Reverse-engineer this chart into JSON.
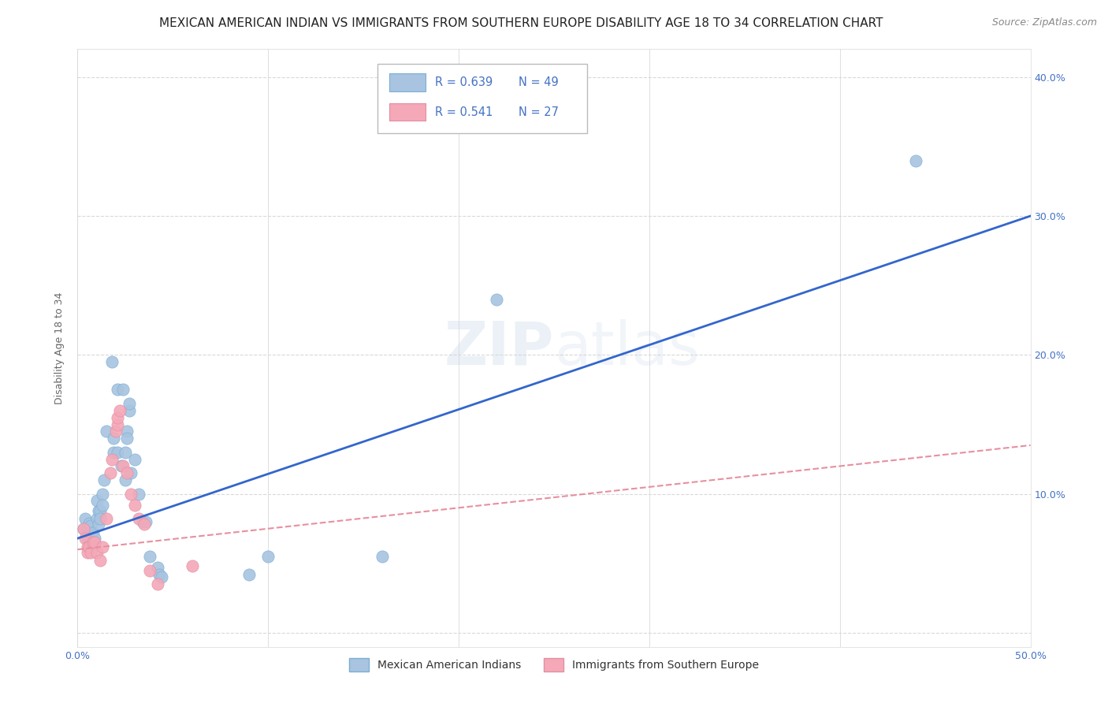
{
  "title": "MEXICAN AMERICAN INDIAN VS IMMIGRANTS FROM SOUTHERN EUROPE DISABILITY AGE 18 TO 34 CORRELATION CHART",
  "source": "Source: ZipAtlas.com",
  "ylabel": "Disability Age 18 to 34",
  "xlim": [
    0.0,
    0.5
  ],
  "ylim": [
    -0.01,
    0.42
  ],
  "xticks": [
    0.0,
    0.1,
    0.2,
    0.3,
    0.4,
    0.5
  ],
  "yticks": [
    0.0,
    0.1,
    0.2,
    0.3,
    0.4
  ],
  "xticklabels": [
    "0.0%",
    "",
    "",
    "",
    "",
    "50.0%"
  ],
  "yticklabels_right": [
    "",
    "10.0%",
    "20.0%",
    "30.0%",
    "40.0%"
  ],
  "background_color": "#ffffff",
  "blue_R": 0.639,
  "blue_N": 49,
  "pink_R": 0.541,
  "pink_N": 27,
  "blue_color": "#a8c4e0",
  "pink_color": "#f4a8b8",
  "blue_line_color": "#3366cc",
  "pink_line_color": "#e88fa0",
  "blue_scatter": [
    [
      0.003,
      0.075
    ],
    [
      0.004,
      0.082
    ],
    [
      0.005,
      0.076
    ],
    [
      0.005,
      0.068
    ],
    [
      0.006,
      0.079
    ],
    [
      0.006,
      0.065
    ],
    [
      0.007,
      0.072
    ],
    [
      0.007,
      0.077
    ],
    [
      0.008,
      0.072
    ],
    [
      0.008,
      0.065
    ],
    [
      0.009,
      0.065
    ],
    [
      0.009,
      0.068
    ],
    [
      0.01,
      0.095
    ],
    [
      0.01,
      0.082
    ],
    [
      0.011,
      0.088
    ],
    [
      0.011,
      0.078
    ],
    [
      0.012,
      0.088
    ],
    [
      0.012,
      0.082
    ],
    [
      0.013,
      0.1
    ],
    [
      0.013,
      0.092
    ],
    [
      0.014,
      0.11
    ],
    [
      0.015,
      0.145
    ],
    [
      0.018,
      0.195
    ],
    [
      0.019,
      0.14
    ],
    [
      0.019,
      0.13
    ],
    [
      0.021,
      0.175
    ],
    [
      0.021,
      0.13
    ],
    [
      0.023,
      0.12
    ],
    [
      0.024,
      0.175
    ],
    [
      0.025,
      0.13
    ],
    [
      0.025,
      0.11
    ],
    [
      0.026,
      0.145
    ],
    [
      0.026,
      0.14
    ],
    [
      0.027,
      0.16
    ],
    [
      0.027,
      0.165
    ],
    [
      0.028,
      0.115
    ],
    [
      0.03,
      0.125
    ],
    [
      0.032,
      0.1
    ],
    [
      0.034,
      0.08
    ],
    [
      0.036,
      0.08
    ],
    [
      0.038,
      0.055
    ],
    [
      0.042,
      0.047
    ],
    [
      0.043,
      0.042
    ],
    [
      0.044,
      0.04
    ],
    [
      0.09,
      0.042
    ],
    [
      0.1,
      0.055
    ],
    [
      0.16,
      0.055
    ],
    [
      0.22,
      0.24
    ],
    [
      0.44,
      0.34
    ]
  ],
  "pink_scatter": [
    [
      0.003,
      0.075
    ],
    [
      0.004,
      0.068
    ],
    [
      0.005,
      0.062
    ],
    [
      0.005,
      0.058
    ],
    [
      0.006,
      0.062
    ],
    [
      0.007,
      0.058
    ],
    [
      0.008,
      0.065
    ],
    [
      0.009,
      0.065
    ],
    [
      0.01,
      0.058
    ],
    [
      0.012,
      0.052
    ],
    [
      0.013,
      0.062
    ],
    [
      0.015,
      0.082
    ],
    [
      0.017,
      0.115
    ],
    [
      0.018,
      0.125
    ],
    [
      0.02,
      0.145
    ],
    [
      0.021,
      0.15
    ],
    [
      0.021,
      0.155
    ],
    [
      0.022,
      0.16
    ],
    [
      0.024,
      0.12
    ],
    [
      0.026,
      0.115
    ],
    [
      0.028,
      0.1
    ],
    [
      0.03,
      0.092
    ],
    [
      0.032,
      0.082
    ],
    [
      0.035,
      0.078
    ],
    [
      0.038,
      0.045
    ],
    [
      0.042,
      0.035
    ],
    [
      0.06,
      0.048
    ]
  ],
  "blue_line_x": [
    0.0,
    0.5
  ],
  "blue_line_y_start": 0.068,
  "blue_line_y_end": 0.3,
  "pink_line_x": [
    0.0,
    0.5
  ],
  "pink_line_y_start": 0.06,
  "pink_line_y_end": 0.135,
  "legend_color_blue": "#4472c4",
  "grid_color": "#d9d9d9",
  "tick_color": "#4472c4",
  "axis_label_color": "#666666",
  "title_fontsize": 11,
  "label_fontsize": 9,
  "tick_fontsize": 9,
  "source_fontsize": 9
}
